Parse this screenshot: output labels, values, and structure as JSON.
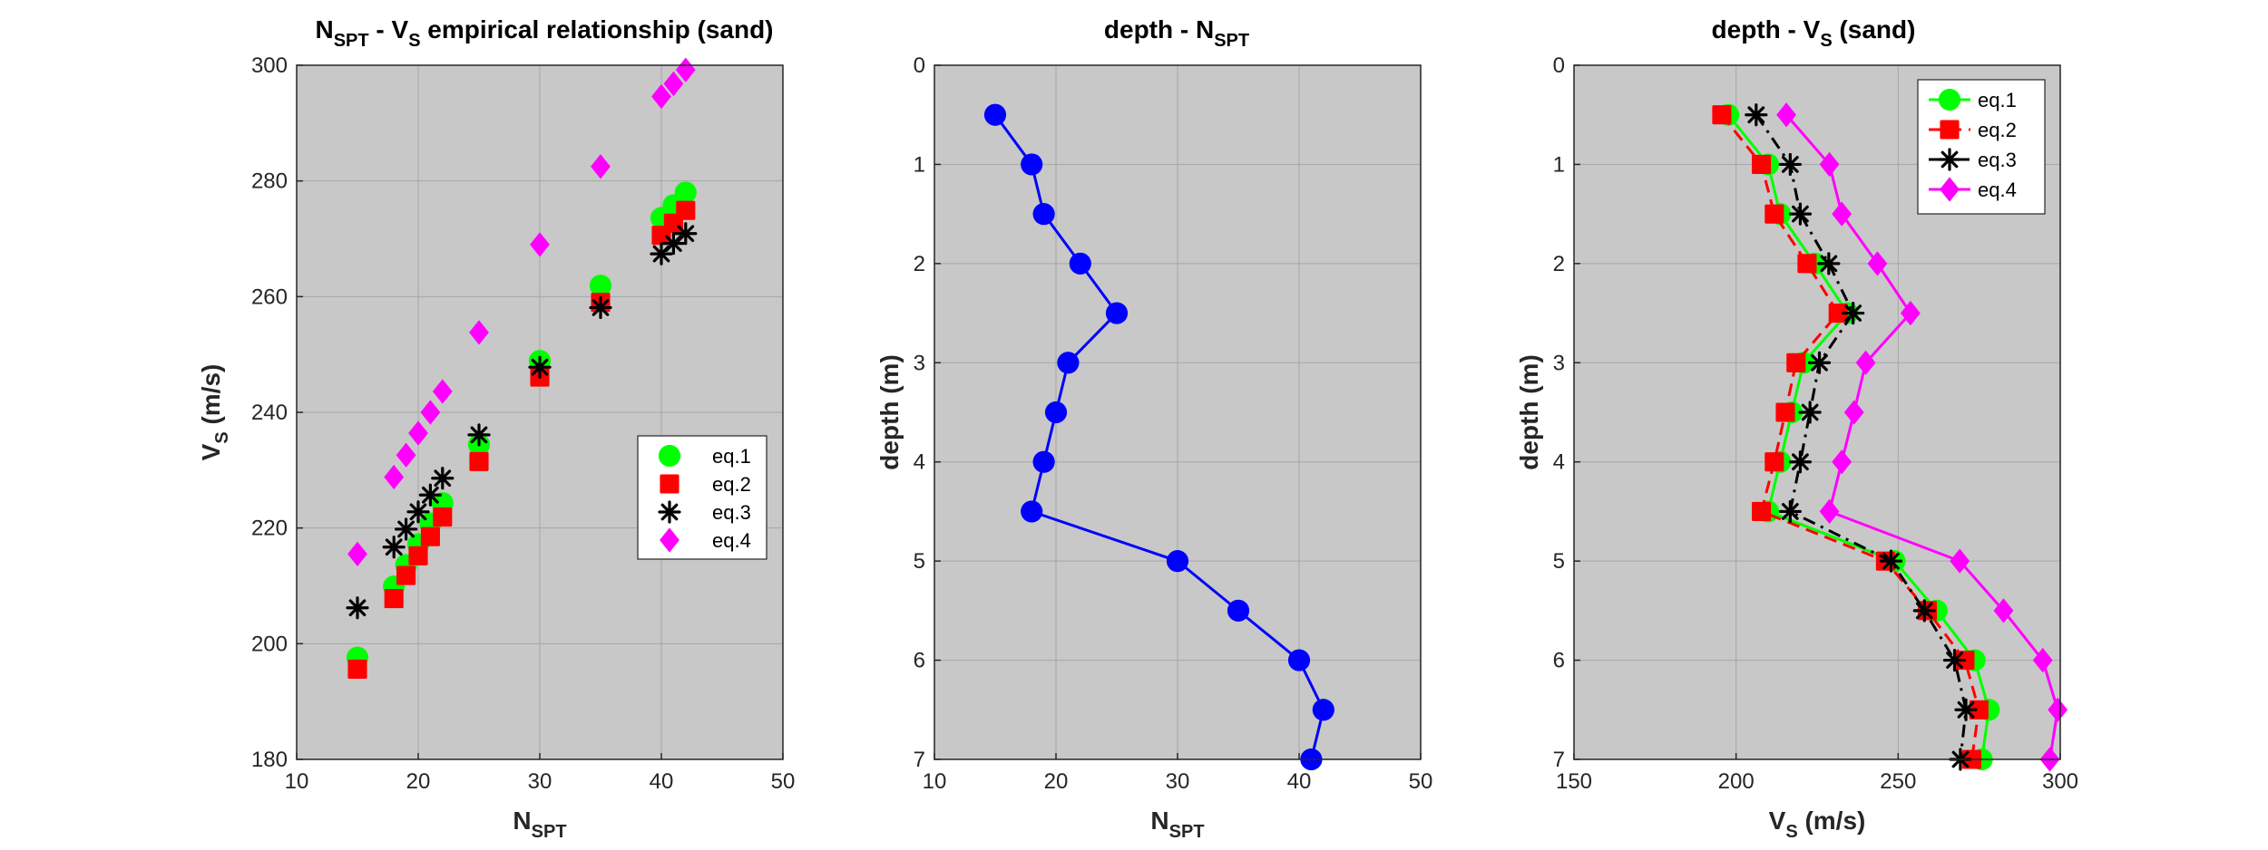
{
  "chart_data": [
    {
      "type": "scatter",
      "title": "Nₛₚₜ - Vₛ  empirical relationship (sand)",
      "title_parts": {
        "a": "N",
        "a_sub": "SPT",
        "b": " - V",
        "b_sub": "S",
        "c": "  empirical relationship (sand)"
      },
      "xlabel": "N",
      "xlabel_sub": "SPT",
      "ylabel": "V",
      "ylabel_sub": "S",
      "ylabel_unit": " (m/s)",
      "xlim": [
        10,
        50
      ],
      "ylim": [
        180,
        300
      ],
      "xticks": [
        10,
        20,
        30,
        40,
        50
      ],
      "yticks": [
        180,
        200,
        220,
        240,
        260,
        280,
        300
      ],
      "grid": true,
      "legend": "right",
      "series": [
        {
          "name": "eq.1",
          "color": "#00ff00",
          "marker": "circle",
          "points": [
            [
              15,
              197.6
            ],
            [
              18,
              209.9
            ],
            [
              19,
              213.6
            ],
            [
              20,
              217.2
            ],
            [
              21,
              220.8
            ],
            [
              22,
              224.3
            ],
            [
              25,
              234.4
            ],
            [
              30,
              248.9
            ],
            [
              35,
              261.9
            ],
            [
              40,
              273.6
            ],
            [
              41,
              275.8
            ],
            [
              42,
              278.0
            ]
          ]
        },
        {
          "name": "eq.2",
          "color": "#ff0000",
          "marker": "square",
          "points": [
            [
              15,
              195.6
            ],
            [
              18,
              207.8
            ],
            [
              19,
              211.8
            ],
            [
              20,
              215.2
            ],
            [
              21,
              218.5
            ],
            [
              22,
              221.9
            ],
            [
              25,
              231.5
            ],
            [
              30,
              246.1
            ],
            [
              35,
              259.0
            ],
            [
              40,
              270.6
            ],
            [
              41,
              272.7
            ],
            [
              42,
              274.9
            ]
          ]
        },
        {
          "name": "eq.3",
          "color": "#000000",
          "marker": "asterisk",
          "points": [
            [
              15,
              206.2
            ],
            [
              18,
              216.7
            ],
            [
              19,
              219.8
            ],
            [
              20,
              222.8
            ],
            [
              21,
              225.7
            ],
            [
              22,
              228.6
            ],
            [
              25,
              236.1
            ],
            [
              30,
              247.8
            ],
            [
              35,
              258.1
            ],
            [
              40,
              267.4
            ],
            [
              41,
              269.2
            ],
            [
              42,
              270.9
            ]
          ]
        },
        {
          "name": "eq.4",
          "color": "#ff00ff",
          "marker": "diamond",
          "points": [
            [
              15,
              215.5
            ],
            [
              18,
              228.8
            ],
            [
              19,
              232.6
            ],
            [
              20,
              236.4
            ],
            [
              21,
              240.0
            ],
            [
              22,
              243.6
            ],
            [
              25,
              253.8
            ],
            [
              30,
              269.0
            ],
            [
              35,
              282.5
            ],
            [
              40,
              294.6
            ],
            [
              41,
              296.8
            ],
            [
              42,
              299.2
            ]
          ]
        }
      ]
    },
    {
      "type": "line",
      "title": "depth - Nₛₚₜ",
      "title_parts": {
        "a": "depth - N",
        "a_sub": "SPT"
      },
      "xlabel": "N",
      "xlabel_sub": "SPT",
      "ylabel": "depth (m)",
      "xlim": [
        10,
        50
      ],
      "ylim": [
        0,
        7
      ],
      "y_reversed": true,
      "xticks": [
        10,
        20,
        30,
        40,
        50
      ],
      "yticks": [
        0,
        1,
        2,
        3,
        4,
        5,
        6,
        7
      ],
      "grid": true,
      "series": [
        {
          "color": "#0000ff",
          "marker": "circle",
          "x": [
            15,
            18,
            19,
            22,
            25,
            21,
            20,
            19,
            18,
            30,
            35,
            40,
            42,
            41
          ],
          "y": [
            0.5,
            1.0,
            1.5,
            2.0,
            2.5,
            3.0,
            3.5,
            4.0,
            4.5,
            5.0,
            5.5,
            6.0,
            6.5,
            7.0
          ]
        }
      ]
    },
    {
      "type": "line",
      "title": "depth - Vₛ (sand)",
      "title_parts": {
        "a": "depth - V",
        "a_sub": "S",
        "c": " (sand)"
      },
      "xlabel": "V",
      "xlabel_sub": "S",
      "xlabel_unit": " (m/s)",
      "ylabel": "depth (m)",
      "xlim": [
        150,
        300
      ],
      "ylim": [
        0,
        7
      ],
      "y_reversed": true,
      "xticks": [
        150,
        200,
        250,
        300
      ],
      "yticks": [
        0,
        1,
        2,
        3,
        4,
        5,
        6,
        7
      ],
      "grid": true,
      "legend": "top-right",
      "depth": [
        0.5,
        1.0,
        1.5,
        2.0,
        2.5,
        3.0,
        3.5,
        4.0,
        4.5,
        5.0,
        5.5,
        6.0,
        6.5,
        7.0
      ],
      "series": [
        {
          "name": "eq.1",
          "color": "#00ff00",
          "marker": "circle",
          "line": "solid",
          "x": [
            197.6,
            209.9,
            213.6,
            224.3,
            234.4,
            220.8,
            217.2,
            213.6,
            209.9,
            248.9,
            261.9,
            273.6,
            278.0,
            275.8
          ]
        },
        {
          "name": "eq.2",
          "color": "#ff0000",
          "marker": "square",
          "line": "dashed",
          "x": [
            195.6,
            207.8,
            211.8,
            221.9,
            231.5,
            218.5,
            215.2,
            211.8,
            207.8,
            246.1,
            259.0,
            270.6,
            274.9,
            272.7
          ]
        },
        {
          "name": "eq.3",
          "color": "#000000",
          "marker": "asterisk",
          "line": "dashdot",
          "x": [
            206.2,
            216.7,
            219.8,
            228.6,
            236.1,
            225.7,
            222.8,
            219.8,
            216.7,
            247.8,
            258.1,
            267.4,
            270.9,
            269.2
          ]
        },
        {
          "name": "eq.4",
          "color": "#ff00ff",
          "marker": "diamond",
          "line": "solid",
          "x": [
            215.5,
            228.8,
            232.6,
            243.6,
            253.8,
            240.0,
            236.4,
            232.6,
            228.8,
            269.0,
            282.5,
            294.6,
            299.2,
            296.8
          ]
        }
      ]
    }
  ]
}
